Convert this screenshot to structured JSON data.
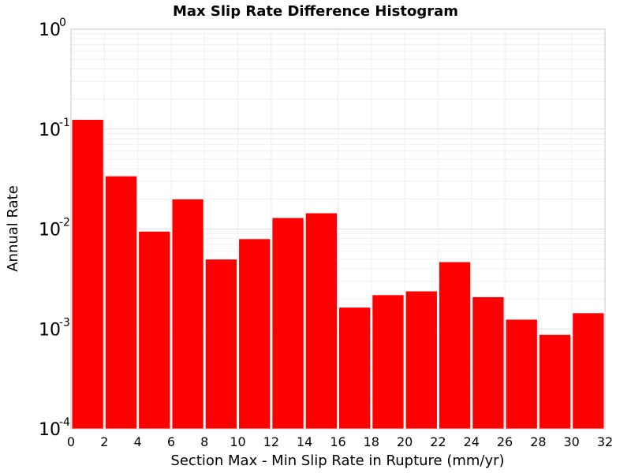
{
  "chart_data": {
    "type": "bar",
    "title": "Max Slip Rate Difference Histogram",
    "xlabel": "Section Max - Min Slip Rate in Rupture (mm/yr)",
    "ylabel": "Annual Rate",
    "x_ticks": [
      "0",
      "2",
      "4",
      "6",
      "8",
      "10",
      "12",
      "14",
      "16",
      "18",
      "20",
      "22",
      "24",
      "26",
      "28",
      "30",
      "32"
    ],
    "y_ticks": [
      {
        "base": "10",
        "exp": "-4",
        "value": 0.0001
      },
      {
        "base": "10",
        "exp": "-3",
        "value": 0.001
      },
      {
        "base": "10",
        "exp": "-2",
        "value": 0.01
      },
      {
        "base": "10",
        "exp": "-1",
        "value": 0.1
      },
      {
        "base": "10",
        "exp": "0",
        "value": 1
      }
    ],
    "xlim": [
      0,
      32
    ],
    "ylim": [
      0.0001,
      1
    ],
    "yscale": "log",
    "grid": true,
    "bar_color": "#ff0000",
    "bars": [
      {
        "x0": 0,
        "x1": 2,
        "value": 0.125
      },
      {
        "x0": 2,
        "x1": 4,
        "value": 0.034
      },
      {
        "x0": 4,
        "x1": 6,
        "value": 0.0095
      },
      {
        "x0": 6,
        "x1": 8,
        "value": 0.02
      },
      {
        "x0": 8,
        "x1": 10,
        "value": 0.005
      },
      {
        "x0": 10,
        "x1": 12,
        "value": 0.008
      },
      {
        "x0": 12,
        "x1": 14,
        "value": 0.013
      },
      {
        "x0": 14,
        "x1": 16,
        "value": 0.0145
      },
      {
        "x0": 16,
        "x1": 18,
        "value": 0.00165
      },
      {
        "x0": 18,
        "x1": 20,
        "value": 0.0022
      },
      {
        "x0": 20,
        "x1": 22,
        "value": 0.0024
      },
      {
        "x0": 22,
        "x1": 24,
        "value": 0.0047
      },
      {
        "x0": 24,
        "x1": 26,
        "value": 0.0021
      },
      {
        "x0": 26,
        "x1": 28,
        "value": 0.00125
      },
      {
        "x0": 28,
        "x1": 30,
        "value": 0.00088
      },
      {
        "x0": 30,
        "x1": 32,
        "value": 0.00145
      }
    ]
  }
}
